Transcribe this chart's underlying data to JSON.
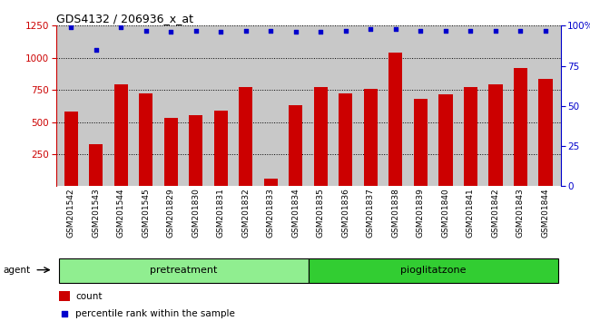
{
  "title": "GDS4132 / 206936_x_at",
  "categories": [
    "GSM201542",
    "GSM201543",
    "GSM201544",
    "GSM201545",
    "GSM201829",
    "GSM201830",
    "GSM201831",
    "GSM201832",
    "GSM201833",
    "GSM201834",
    "GSM201835",
    "GSM201836",
    "GSM201837",
    "GSM201838",
    "GSM201839",
    "GSM201840",
    "GSM201841",
    "GSM201842",
    "GSM201843",
    "GSM201844"
  ],
  "bar_values": [
    580,
    330,
    790,
    720,
    530,
    550,
    590,
    775,
    60,
    630,
    770,
    720,
    760,
    1040,
    680,
    715,
    775,
    790,
    920,
    835
  ],
  "percentile_values": [
    99,
    85,
    99,
    97,
    96,
    97,
    96,
    97,
    97,
    96,
    96,
    97,
    98,
    98,
    97,
    97,
    97,
    97,
    97,
    97
  ],
  "bar_color": "#cc0000",
  "percentile_color": "#0000cc",
  "ylim_left": [
    0,
    1250
  ],
  "ylim_right": [
    0,
    100
  ],
  "yticks_left": [
    250,
    500,
    750,
    1000,
    1250
  ],
  "yticks_right": [
    0,
    25,
    50,
    75,
    100
  ],
  "pretreatment_label": "pretreatment",
  "pioglitazone_label": "pioglitatzone",
  "pretreatment_color": "#90ee90",
  "pioglitazone_color": "#32cd32",
  "agent_label": "agent",
  "legend_count_label": "count",
  "legend_pct_label": "percentile rank within the sample",
  "bar_width": 0.55,
  "bg_color": "#c8c8c8",
  "n_pretreatment": 10,
  "n_pioglitazone": 10
}
